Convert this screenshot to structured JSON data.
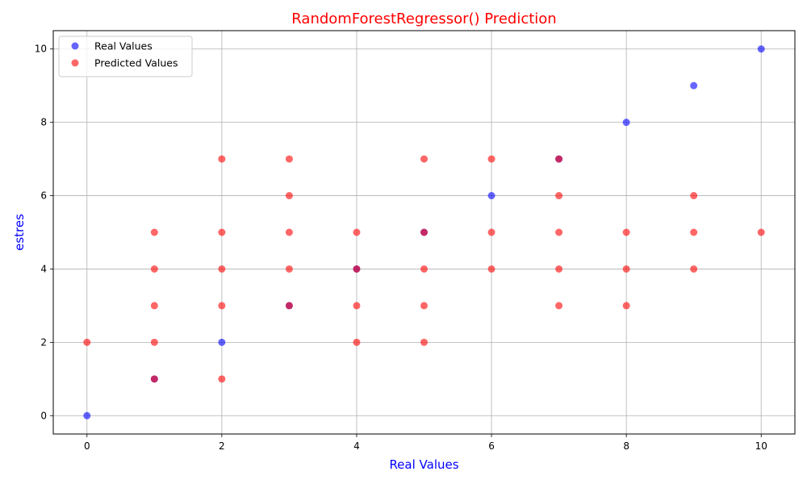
{
  "chart_data": {
    "type": "scatter",
    "title": "RandomForestRegressor() Prediction",
    "xlabel": "Real Values",
    "ylabel": "estres",
    "xlim": [
      -0.5,
      10.5
    ],
    "ylim": [
      -0.5,
      10.5
    ],
    "xticks": [
      "0",
      "2",
      "4",
      "6",
      "8",
      "10"
    ],
    "yticks": [
      "0",
      "2",
      "4",
      "6",
      "8",
      "10"
    ],
    "grid": true,
    "legend_position": "top-left",
    "colors": {
      "title": "#ff0000",
      "axis_labels": "#0000ff"
    },
    "series": [
      {
        "name": "Real Values",
        "color": "#0000ff",
        "alpha": 0.6,
        "points": [
          [
            0,
            0
          ],
          [
            1,
            1
          ],
          [
            2,
            2
          ],
          [
            3,
            3
          ],
          [
            4,
            4
          ],
          [
            5,
            5
          ],
          [
            6,
            6
          ],
          [
            7,
            7
          ],
          [
            8,
            8
          ],
          [
            9,
            9
          ],
          [
            10,
            10
          ]
        ]
      },
      {
        "name": "Predicted Values",
        "color": "#ff0000",
        "alpha": 0.6,
        "points": [
          [
            0,
            2
          ],
          [
            1,
            1
          ],
          [
            1,
            2
          ],
          [
            1,
            3
          ],
          [
            1,
            4
          ],
          [
            1,
            5
          ],
          [
            2,
            1
          ],
          [
            2,
            3
          ],
          [
            2,
            4
          ],
          [
            2,
            5
          ],
          [
            2,
            7
          ],
          [
            3,
            3
          ],
          [
            3,
            4
          ],
          [
            3,
            5
          ],
          [
            3,
            6
          ],
          [
            3,
            7
          ],
          [
            4,
            2
          ],
          [
            4,
            3
          ],
          [
            4,
            4
          ],
          [
            4,
            5
          ],
          [
            5,
            2
          ],
          [
            5,
            3
          ],
          [
            5,
            4
          ],
          [
            5,
            5
          ],
          [
            5,
            7
          ],
          [
            6,
            4
          ],
          [
            6,
            5
          ],
          [
            6,
            7
          ],
          [
            7,
            3
          ],
          [
            7,
            4
          ],
          [
            7,
            5
          ],
          [
            7,
            6
          ],
          [
            7,
            7
          ],
          [
            8,
            3
          ],
          [
            8,
            4
          ],
          [
            8,
            5
          ],
          [
            9,
            4
          ],
          [
            9,
            5
          ],
          [
            9,
            6
          ],
          [
            10,
            5
          ]
        ]
      }
    ]
  }
}
